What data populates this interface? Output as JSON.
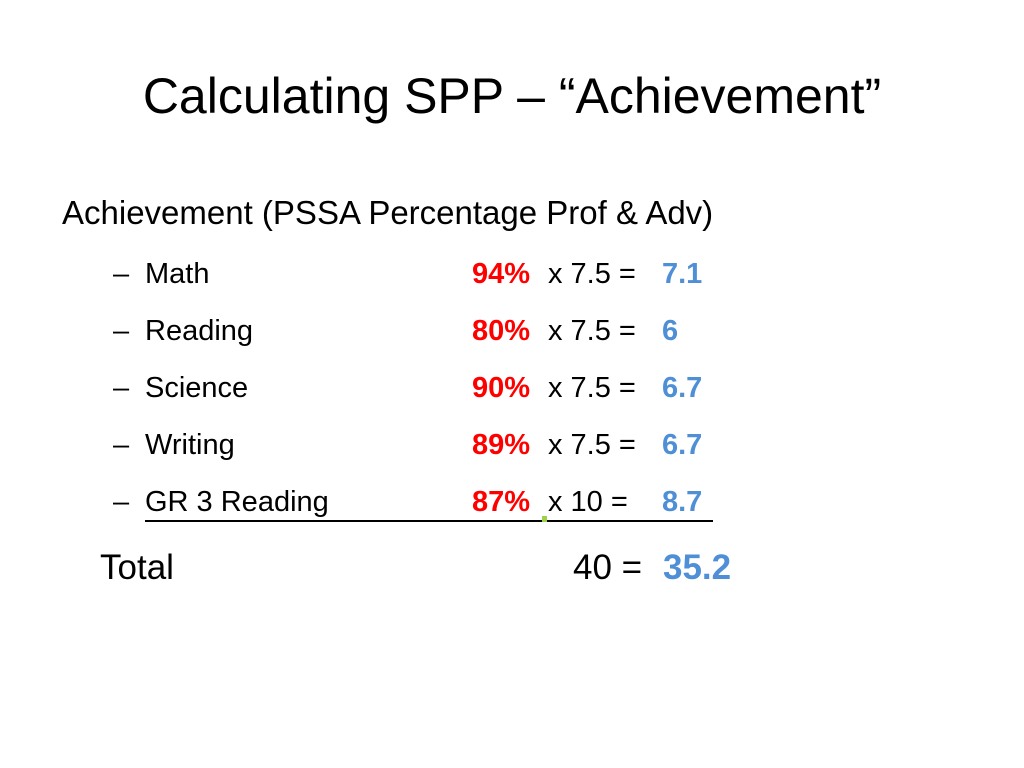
{
  "title": "Calculating SPP – “Achievement”",
  "heading": "Achievement (PSSA Percentage Prof & Adv)",
  "bullet": "–",
  "rows": [
    {
      "label": "Math",
      "pct": "94%",
      "mult": "x 7.5 =",
      "result": "7.1"
    },
    {
      "label": "Reading",
      "pct": "80%",
      "mult": "x 7.5 =",
      "result": "6"
    },
    {
      "label": "Science",
      "pct": "90%",
      "mult": "x 7.5 =",
      "result": "6.7"
    },
    {
      "label": "Writing",
      "pct": "89%",
      "mult": "x 7.5 =",
      "result": "6.7"
    },
    {
      "label": "GR 3 Reading",
      "pct": "87%",
      "mult": "x 10 =",
      "result": "8.7"
    }
  ],
  "total": {
    "label": "Total",
    "eq": "40 =",
    "result": "35.2"
  },
  "colors": {
    "pct": "#ff0000",
    "result": "#4f8fd6",
    "text": "#000000"
  }
}
